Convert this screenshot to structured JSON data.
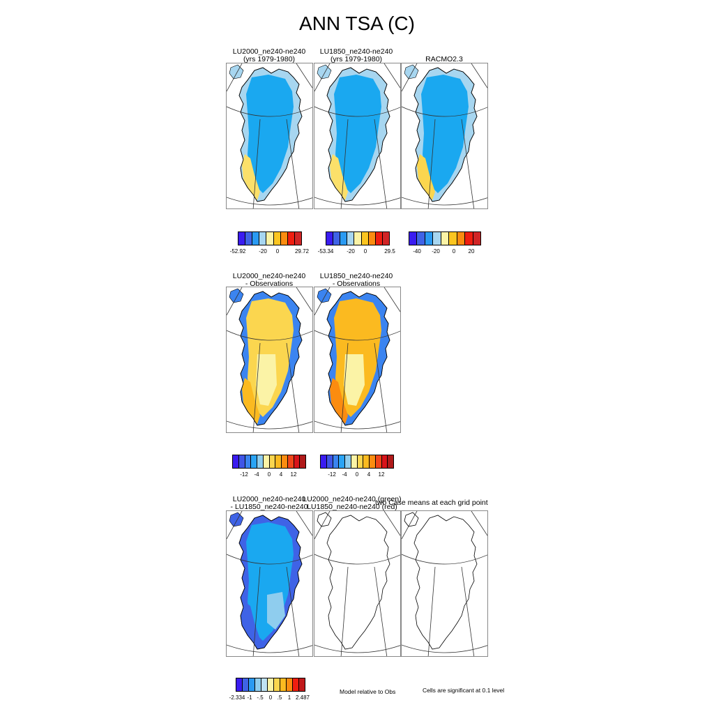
{
  "title": "ANN TSA (C)",
  "row1": {
    "panels": [
      {
        "title1": "LU2000_ne240-ne240",
        "title2": "(yrs 1979-1980)",
        "style": "base"
      },
      {
        "title1": "LU1850_ne240-ne240",
        "title2": "(yrs 1979-1980)",
        "style": "base"
      },
      {
        "title1": "",
        "title2": "RACMO2.3",
        "style": "racmo"
      }
    ],
    "colorbars": [
      {
        "ticks": [
          "-52.92",
          "-20",
          "0",
          "29.72"
        ]
      },
      {
        "ticks": [
          "-53.34",
          "-20",
          "0",
          "29.5"
        ]
      },
      {
        "ticks": [
          "-40",
          "-20",
          "0",
          "20"
        ]
      }
    ]
  },
  "row2": {
    "panels": [
      {
        "title1": "LU2000_ne240-ne240",
        "title2": "- Observations",
        "style": "diff"
      },
      {
        "title1": "LU1850_ne240-ne240",
        "title2": "- Observations",
        "style": "diff2"
      }
    ],
    "colorbars": [
      {
        "ticks": [
          "-12",
          "-4",
          "0",
          "4",
          "12"
        ]
      },
      {
        "ticks": [
          "-12",
          "-4",
          "0",
          "4",
          "12"
        ]
      }
    ]
  },
  "row3": {
    "panels": [
      {
        "title1": "LU2000_ne240-ne240",
        "title2": "- LU1850_ne240-ne240",
        "style": "mdiff"
      },
      {
        "title1": "LU2000_ne240-ne240 (green)",
        "title2": "LU1850_ne240-ne240 (red)",
        "style": "outline"
      },
      {
        "title1": "",
        "title2": "",
        "style": "outline"
      }
    ],
    "overlay_title": "two Case means at each grid point",
    "colorbar": {
      "ticks": [
        "-2.334",
        "-1",
        "-.5",
        "0",
        ".5",
        "1",
        "2.487"
      ]
    },
    "note_model": "Model relative to Obs",
    "note_sig": "Cells are significant at 0.1 level"
  },
  "colors": {
    "scale_abs": [
      "#3a1cf0",
      "#3f63e6",
      "#2a9af2",
      "#a7d6f0",
      "#fbf3a6",
      "#fbc520",
      "#fb8c10",
      "#ef1e10",
      "#d12526"
    ],
    "scale_diff": [
      "#3a1cf0",
      "#3f55e6",
      "#3b84f0",
      "#2aa4f5",
      "#8fcdee",
      "#fbf3a6",
      "#fbd64f",
      "#fbba20",
      "#fb8c10",
      "#f0461a",
      "#d8141a",
      "#b01a1a"
    ],
    "scale_mdiff": [
      "#3a1cf0",
      "#3f63e6",
      "#2a9af2",
      "#8fcdee",
      "#bfe2f2",
      "#fbf3a6",
      "#fbd64f",
      "#fbba20",
      "#fb8c10",
      "#ef1e10",
      "#c0191a"
    ]
  }
}
